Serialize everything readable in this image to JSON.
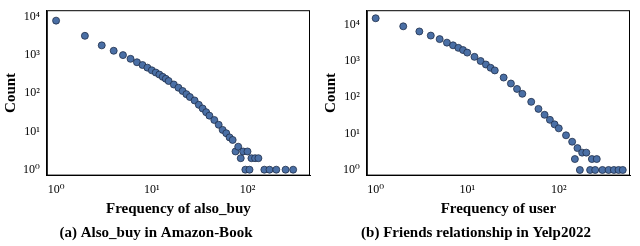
{
  "chart_data": [
    {
      "type": "scatter",
      "title": "(a) Also_buy in Amazon-Book",
      "x_label": "Frequency of also_buy",
      "y_label": "Count",
      "x": [
        1,
        2,
        3,
        4,
        5,
        6,
        7,
        8,
        9,
        10,
        11,
        12,
        13,
        14,
        15,
        17,
        19,
        21,
        23,
        25,
        28,
        31,
        34,
        37,
        40,
        45,
        50,
        55,
        60,
        65,
        70,
        75,
        80,
        85,
        90,
        95,
        100,
        105,
        110,
        120,
        130,
        150,
        170,
        200,
        250,
        300
      ],
      "values": [
        8000,
        3200,
        1800,
        1300,
        1000,
        800,
        650,
        550,
        470,
        400,
        350,
        310,
        270,
        240,
        210,
        170,
        140,
        115,
        95,
        80,
        65,
        50,
        40,
        32,
        26,
        20,
        15,
        11,
        9,
        7,
        6,
        3,
        4,
        2,
        3,
        1,
        3,
        1,
        2,
        2,
        2,
        1,
        1,
        1,
        1,
        1
      ],
      "color": "#4a6fa5",
      "marker": "circle",
      "log": true,
      "grid": false,
      "xlim": [
        0.8,
        450
      ],
      "ylim": [
        0.7,
        15000
      ],
      "xticks": [
        {
          "value": 1,
          "label": "10⁰"
        },
        {
          "value": 10,
          "label": "10¹"
        },
        {
          "value": 100,
          "label": "10²"
        }
      ],
      "yticks": [
        {
          "value": 1,
          "label": "10⁰"
        },
        {
          "value": 10,
          "label": "10¹"
        },
        {
          "value": 100,
          "label": "10²"
        },
        {
          "value": 1000,
          "label": "10³"
        },
        {
          "value": 10000,
          "label": "10⁴"
        }
      ]
    },
    {
      "type": "scatter",
      "title": "(b) Friends relationship in Yelp2022",
      "x_label": "Frequency of user",
      "y_label": "Count",
      "x": [
        1,
        2,
        3,
        4,
        5,
        6,
        7,
        8,
        9,
        10,
        12,
        14,
        16,
        18,
        20,
        25,
        30,
        35,
        40,
        50,
        60,
        70,
        80,
        90,
        100,
        120,
        140,
        150,
        160,
        170,
        180,
        200,
        220,
        230,
        250,
        260,
        300,
        350,
        400,
        450,
        500
      ],
      "values": [
        15000,
        9000,
        6500,
        5000,
        4000,
        3200,
        2700,
        2300,
        2000,
        1700,
        1300,
        1000,
        800,
        650,
        550,
        350,
        240,
        170,
        125,
        75,
        48,
        33,
        24,
        18,
        14,
        9,
        6,
        2,
        4,
        1,
        3,
        3,
        1,
        2,
        1,
        2,
        1,
        1,
        1,
        1,
        1
      ],
      "color": "#4a6fa5",
      "marker": "circle",
      "log": true,
      "grid": false,
      "xlim": [
        0.8,
        600
      ],
      "ylim": [
        0.7,
        25000
      ],
      "xticks": [
        {
          "value": 1,
          "label": "10⁰"
        },
        {
          "value": 10,
          "label": "10¹"
        },
        {
          "value": 100,
          "label": "10²"
        }
      ],
      "yticks": [
        {
          "value": 1,
          "label": "10⁰"
        },
        {
          "value": 10,
          "label": "10¹"
        },
        {
          "value": 100,
          "label": "10²"
        },
        {
          "value": 1000,
          "label": "10³"
        },
        {
          "value": 10000,
          "label": "10⁴"
        }
      ]
    }
  ]
}
